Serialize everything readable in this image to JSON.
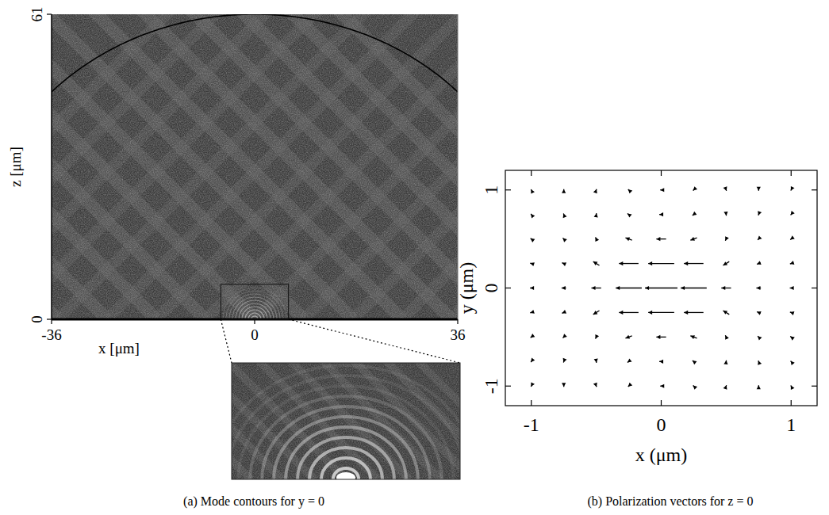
{
  "chart_data": [
    {
      "type": "image",
      "title": "(a) Mode contours for y = 0",
      "x_label": "x [μm]",
      "y_label": "z [μm]",
      "xlim": [
        -36,
        36
      ],
      "ylim": [
        0,
        61
      ],
      "xticks": [
        -36,
        0,
        36
      ],
      "yticks": [
        0,
        61
      ],
      "boundary": {
        "center": [
          0,
          11.5
        ],
        "radius": 49.5
      },
      "inset": {
        "xlim": [
          -6,
          6
        ],
        "zlim": [
          0,
          7
        ]
      }
    },
    {
      "type": "vector_field",
      "title": "(b) Polarization vectors for z = 0",
      "x_label": "x (μm)",
      "y_label": "y (μm)",
      "xlim": [
        -1.2,
        1.2
      ],
      "ylim": [
        -1.2,
        1.2
      ],
      "xticks": [
        -1,
        0,
        1
      ],
      "yticks": [
        -1,
        0,
        1
      ],
      "x": [
        -1,
        -0.75,
        -0.5,
        -0.25,
        0,
        0.25,
        0.5,
        0.75,
        1
      ],
      "y": [
        1,
        0.75,
        0.5,
        0.25,
        0,
        -0.25,
        -0.5,
        -0.75,
        -1
      ],
      "u": [
        [
          -0.02,
          0,
          0.02,
          -0.04,
          -0.06,
          -0.04,
          0.02,
          0,
          -0.02
        ],
        [
          -0.03,
          -0.02,
          0.01,
          -0.08,
          -0.12,
          -0.08,
          0.01,
          -0.02,
          -0.03
        ],
        [
          -0.05,
          -0.06,
          -0.05,
          -0.2,
          -0.3,
          -0.2,
          -0.05,
          -0.06,
          -0.05
        ],
        [
          -0.07,
          -0.11,
          -0.19,
          -0.6,
          -0.8,
          -0.6,
          -0.19,
          -0.11,
          -0.07
        ],
        [
          -0.08,
          -0.14,
          -0.3,
          -0.8,
          -1,
          -0.8,
          -0.3,
          -0.14,
          -0.08
        ],
        [
          -0.07,
          -0.11,
          -0.19,
          -0.6,
          -0.8,
          -0.6,
          -0.19,
          -0.11,
          -0.07
        ],
        [
          -0.05,
          -0.06,
          -0.05,
          -0.2,
          -0.3,
          -0.2,
          -0.05,
          -0.06,
          -0.05
        ],
        [
          -0.03,
          -0.02,
          0.01,
          -0.08,
          -0.12,
          -0.08,
          0.01,
          -0.02,
          -0.03
        ],
        [
          -0.02,
          0,
          0.02,
          -0.04,
          -0.06,
          -0.04,
          0.02,
          0,
          -0.02
        ]
      ],
      "v": [
        [
          0.05,
          0.06,
          0.07,
          0.05,
          0,
          -0.05,
          -0.07,
          -0.06,
          -0.05
        ],
        [
          0.05,
          0.07,
          0.1,
          0.08,
          0,
          -0.08,
          -0.1,
          -0.07,
          -0.05
        ],
        [
          0.05,
          0.08,
          0.14,
          0.1,
          0,
          -0.1,
          -0.14,
          -0.08,
          -0.05
        ],
        [
          0.03,
          0.06,
          0.16,
          0,
          0,
          0,
          -0.16,
          -0.06,
          -0.03
        ],
        [
          0,
          0,
          0,
          0,
          0,
          0,
          0,
          0,
          0
        ],
        [
          -0.03,
          -0.06,
          -0.16,
          0,
          0,
          0,
          0.16,
          0.06,
          0.03
        ],
        [
          -0.05,
          -0.08,
          -0.14,
          -0.1,
          0,
          0.1,
          0.14,
          0.08,
          0.05
        ],
        [
          -0.05,
          -0.07,
          -0.1,
          -0.08,
          0,
          0.08,
          0.1,
          0.07,
          0.05
        ],
        [
          -0.05,
          -0.06,
          -0.07,
          -0.05,
          0,
          0.05,
          0.07,
          0.06,
          0.05
        ]
      ]
    }
  ]
}
